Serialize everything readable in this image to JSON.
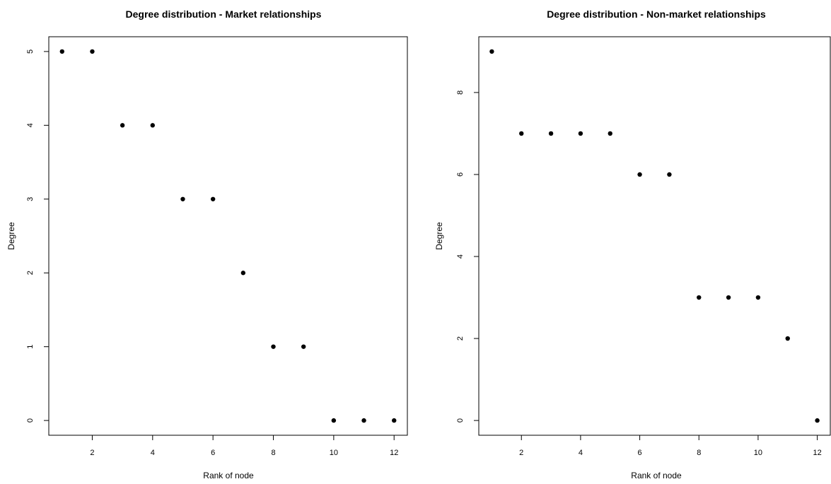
{
  "chart_data": [
    {
      "type": "scatter",
      "title": "Degree distribution - Market relationships",
      "xlabel": "Rank of node",
      "ylabel": "Degree",
      "x": [
        1,
        2,
        3,
        4,
        5,
        6,
        7,
        8,
        9,
        10,
        11,
        12
      ],
      "y": [
        5,
        5,
        4,
        4,
        3,
        3,
        2,
        1,
        1,
        0,
        0,
        0
      ],
      "xlim": [
        0.56,
        12.44
      ],
      "ylim": [
        -0.2,
        5.2
      ],
      "xticks": [
        2,
        4,
        6,
        8,
        10,
        12
      ],
      "yticks": [
        0,
        1,
        2,
        3,
        4,
        5
      ],
      "grid": false,
      "point_color": "#000000"
    },
    {
      "type": "scatter",
      "title": "Degree distribution - Non-market relationships",
      "xlabel": "Rank of node",
      "ylabel": "Degree",
      "x": [
        1,
        2,
        3,
        4,
        5,
        6,
        7,
        8,
        9,
        10,
        11,
        12
      ],
      "y": [
        9,
        7,
        7,
        7,
        7,
        6,
        6,
        3,
        3,
        3,
        2,
        0
      ],
      "xlim": [
        0.56,
        12.44
      ],
      "ylim": [
        -0.36,
        9.36
      ],
      "xticks": [
        2,
        4,
        6,
        8,
        10,
        12
      ],
      "yticks": [
        0,
        2,
        4,
        6,
        8
      ],
      "grid": false,
      "point_color": "#000000"
    }
  ]
}
